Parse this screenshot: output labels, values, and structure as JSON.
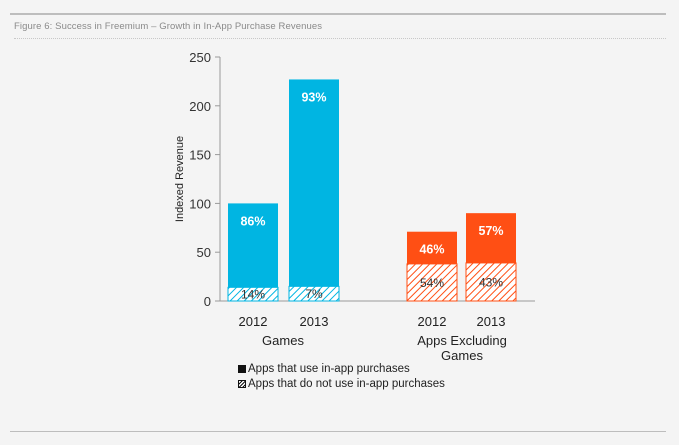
{
  "figure_title": "Figure 6: Success in Freemium – Growth in In-App Purchase Revenues",
  "colors": {
    "games": "#00b5e2",
    "apps": "#ff4f14",
    "hatch_games": "#00b5e2",
    "hatch_apps": "#ff4f14"
  },
  "chart_data": {
    "type": "bar",
    "stacked": true,
    "title": "Figure 6: Success in Freemium – Growth in In-App Purchase Revenues",
    "ylabel": "Indexed Revenue",
    "xlabel": "",
    "ylim": [
      0,
      250
    ],
    "yticks": [
      0,
      50,
      100,
      150,
      200,
      250
    ],
    "groups": [
      {
        "name": "Games",
        "bars": [
          {
            "year": "2012",
            "total": 100,
            "no_iap_value": 14,
            "iap_pct": "86%",
            "no_iap_pct": "14%"
          },
          {
            "year": "2013",
            "total": 227,
            "no_iap_value": 15,
            "iap_pct": "93%",
            "no_iap_pct": "7%"
          }
        ]
      },
      {
        "name": "Apps Excluding Games",
        "bars": [
          {
            "year": "2012",
            "total": 71,
            "no_iap_value": 38,
            "iap_pct": "46%",
            "no_iap_pct": "54%"
          },
          {
            "year": "2013",
            "total": 90,
            "no_iap_value": 39,
            "iap_pct": "57%",
            "no_iap_pct": "43%"
          }
        ]
      }
    ],
    "legend": [
      {
        "label": "Apps that use in-app purchases",
        "style": "solid"
      },
      {
        "label": "Apps that do not use in-app purchases",
        "style": "hatched"
      }
    ],
    "legend_position": "bottom"
  }
}
